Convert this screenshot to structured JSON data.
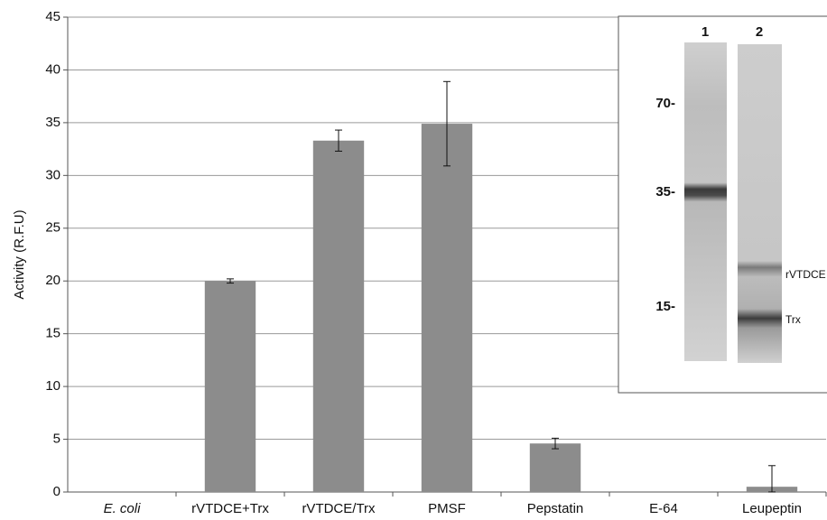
{
  "chart_data": {
    "type": "bar",
    "y_label": "Activity (R.F.U)",
    "categories": [
      "E. coli",
      "rVTDCE+Trx",
      "rVTDCE/Trx",
      "PMSF",
      "Pepstatin",
      "E-64",
      "Leupeptin"
    ],
    "values": [
      0,
      20,
      33.3,
      34.9,
      4.6,
      0,
      0.5
    ],
    "errors": [
      null,
      0.2,
      1,
      4,
      0.5,
      null,
      2
    ],
    "color": "#8c8c8c",
    "ylim": [
      0,
      45
    ],
    "yticks": [
      0,
      5,
      10,
      15,
      20,
      25,
      30,
      35,
      40,
      45
    ],
    "grid": true,
    "inset": {
      "lanes": [
        "1",
        "2"
      ],
      "markers": [
        "70-",
        "35-",
        "15-"
      ],
      "band_labels": [
        "rVTDCE",
        "Trx"
      ]
    }
  }
}
